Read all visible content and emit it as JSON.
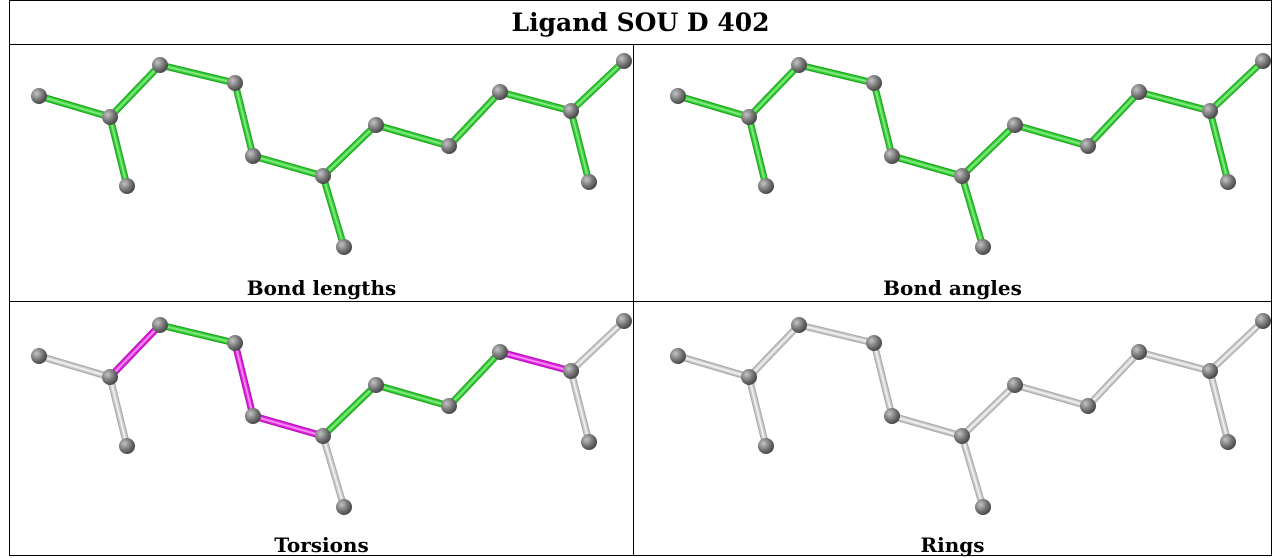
{
  "title": "Ligand SOU D 402",
  "colors": {
    "pass": "#33cc33",
    "flag": "#e020e0",
    "neutral": "#c8c8c8",
    "atom": "#808080"
  },
  "panels": [
    {
      "caption": "Bond lengths",
      "bonds": [
        "pass",
        "pass",
        "pass",
        "pass",
        "pass",
        "pass",
        "pass",
        "pass",
        "pass",
        "pass",
        "pass",
        "pass",
        "pass",
        "pass"
      ]
    },
    {
      "caption": "Bond angles",
      "bonds": [
        "pass",
        "pass",
        "pass",
        "pass",
        "pass",
        "pass",
        "pass",
        "pass",
        "pass",
        "pass",
        "pass",
        "pass",
        "pass",
        "pass"
      ]
    },
    {
      "caption": "Torsions",
      "bonds": [
        "neutral",
        "flag",
        "pass",
        "flag",
        "flag",
        "neutral",
        "pass",
        "pass",
        "pass",
        "flag",
        "neutral",
        "neutral",
        "neutral",
        "neutral"
      ]
    },
    {
      "caption": "Rings",
      "bonds": [
        "neutral",
        "neutral",
        "neutral",
        "neutral",
        "neutral",
        "neutral",
        "neutral",
        "neutral",
        "neutral",
        "neutral",
        "neutral",
        "neutral",
        "neutral",
        "neutral"
      ]
    }
  ]
}
